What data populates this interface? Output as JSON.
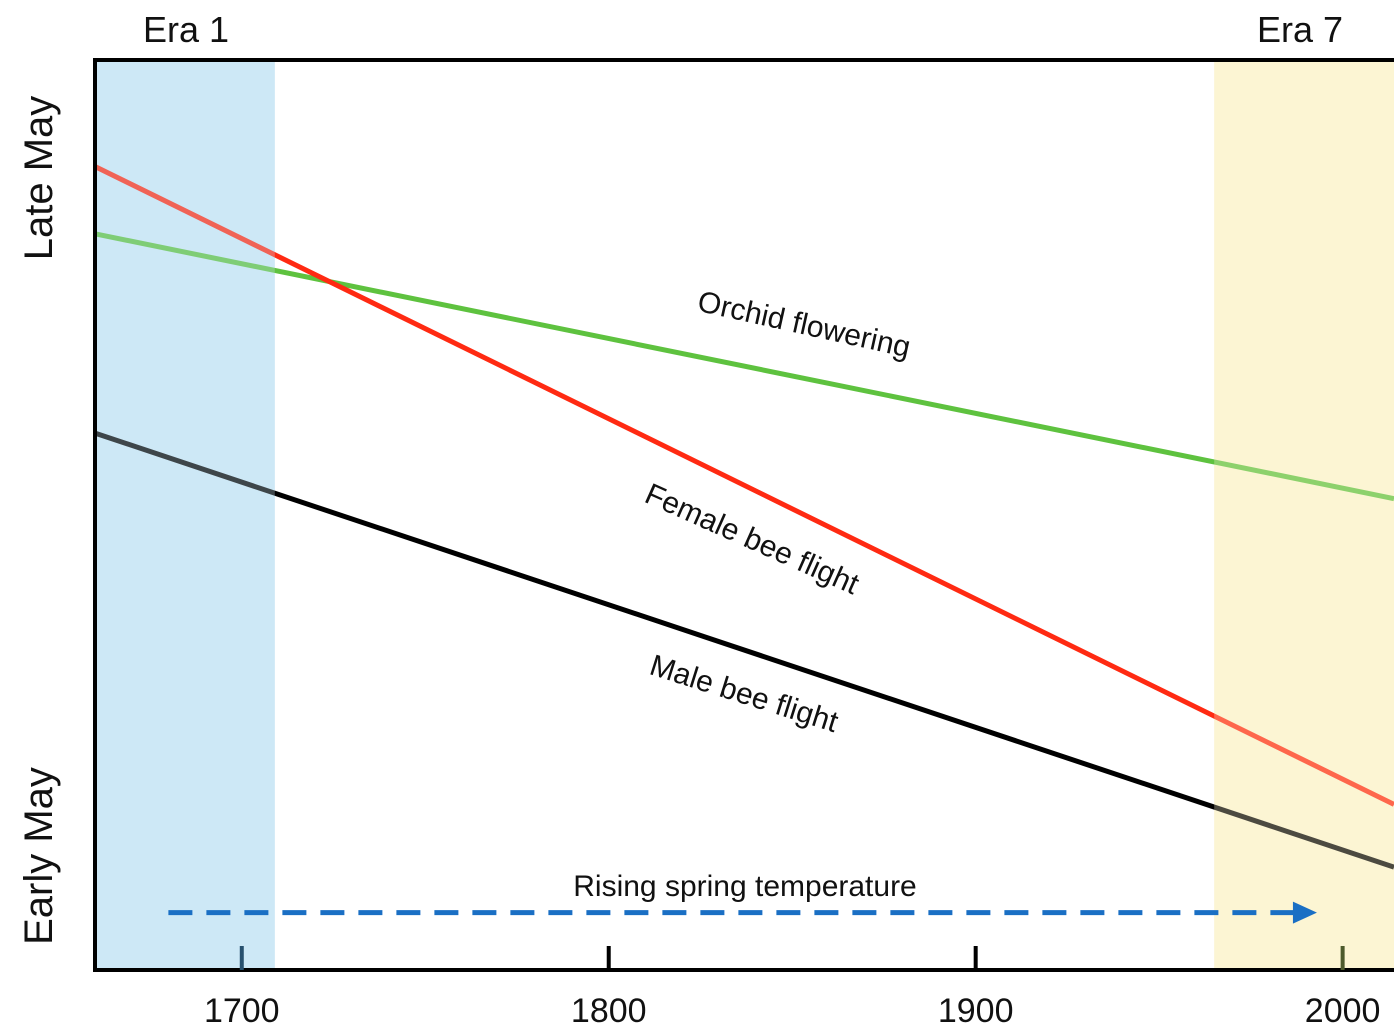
{
  "chart_data": {
    "type": "line",
    "title": "",
    "xlabel": "",
    "ylabel": "",
    "xlim": [
      1660,
      2014
    ],
    "ylim": [
      0,
      100
    ],
    "x_ticks": [
      1700,
      1800,
      1900,
      2000
    ],
    "x_tick_labels": [
      "1700",
      "1800",
      "1900",
      "2000"
    ],
    "y_category_labels": {
      "top": "Late May",
      "bottom": "Early May"
    },
    "grid": false,
    "eras": [
      {
        "label": "Era 1",
        "x": [
          1660,
          1709
        ],
        "color": "#cde8f6"
      },
      {
        "label": "Era 7",
        "x": [
          1965,
          2014
        ],
        "color": "#fdf5d3"
      }
    ],
    "series": [
      {
        "name": "Orchid flowering",
        "color": "#5ec23f",
        "x": [
          1660,
          2014
        ],
        "y": [
          80.9,
          51.8
        ]
      },
      {
        "name": "Female bee flight",
        "color": "#ff2a12",
        "x": [
          1660,
          2014
        ],
        "y": [
          88.3,
          18.2
        ]
      },
      {
        "name": "Male bee flight",
        "color": "#000000",
        "x": [
          1660,
          2014
        ],
        "y": [
          59.0,
          11.3
        ]
      }
    ],
    "annotations": [
      {
        "text": "Rising spring temperature",
        "color": "#1a6fc4",
        "arrow_x": [
          1680,
          1993
        ],
        "arrow_y": 6.3
      }
    ]
  }
}
